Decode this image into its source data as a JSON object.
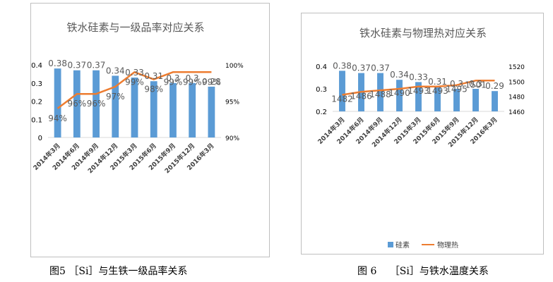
{
  "colors": {
    "bar": "#5b9bd5",
    "line": "#ed7d31",
    "axis": "#d9d9d9",
    "grid": "#d9d9d9",
    "text": "#595959"
  },
  "captions": {
    "fig5": "图5 ［Si］与生铁一级品率关系",
    "fig6": "图 6　 ［Si］与铁水温度关系"
  },
  "chart_data": [
    {
      "type": "bar",
      "title": "铁水硅素与一级品率对应关系",
      "categories": [
        "2014年3月",
        "2014年6月",
        "2014年9月",
        "2014年12月",
        "2015年3月",
        "2015年6月",
        "2015年9月",
        "2015年12月",
        "2016年3月"
      ],
      "series": [
        {
          "name": "硅素",
          "type": "bar",
          "axis": "left",
          "values": [
            0.38,
            0.37,
            0.37,
            0.34,
            0.33,
            0.31,
            0.3,
            0.3,
            0.28
          ],
          "labels": [
            "0.38",
            "0.37",
            "0.37",
            "0.34",
            "0.33",
            "0.31",
            "0.3",
            "0.3",
            "0.28"
          ]
        },
        {
          "name": "一级品率",
          "type": "line",
          "axis": "right",
          "values": [
            94,
            96,
            96,
            97,
            99,
            98,
            99,
            99,
            99
          ],
          "labels": [
            "94%",
            "96%",
            "96%",
            "97%",
            "99%",
            "98%",
            "99%",
            "99%",
            "99%"
          ]
        }
      ],
      "left_axis": {
        "ylim": [
          0,
          0.4
        ],
        "ticks": [
          "0",
          "0.1",
          "0.2",
          "0.3",
          "0.4"
        ]
      },
      "right_axis": {
        "ylim": [
          90,
          100
        ],
        "ticks": [
          "90%",
          "95%",
          "100%"
        ]
      }
    },
    {
      "type": "bar",
      "title": "铁水硅素与物理热对应关系",
      "categories": [
        "2014年3月",
        "2014年6月",
        "2014年9月",
        "2014年12月",
        "2015年3月",
        "2015年6月",
        "2015年9月",
        "2015年12月",
        "2016年3月"
      ],
      "series": [
        {
          "name": "硅素",
          "type": "bar",
          "axis": "left",
          "values": [
            0.38,
            0.37,
            0.37,
            0.34,
            0.33,
            0.31,
            0.3,
            0.3,
            0.29
          ],
          "labels": [
            "0.38",
            "0.37",
            "0.37",
            "0.34",
            "0.33",
            "0.31",
            "0.3",
            "0.3",
            "0.29"
          ]
        },
        {
          "name": "物理热",
          "type": "line",
          "axis": "right",
          "values": [
            1482,
            1486,
            1488,
            1490,
            1493,
            1493,
            1495,
            1501,
            1501
          ],
          "labels": [
            "1482",
            "1486",
            "1488",
            "1490",
            "1493",
            "1493",
            "1495",
            "1501",
            ""
          ]
        }
      ],
      "left_axis": {
        "ylim": [
          0.2,
          0.4
        ],
        "ticks": [
          "0.2",
          "0.3",
          "0.4"
        ]
      },
      "right_axis": {
        "ylim": [
          1460,
          1520
        ],
        "ticks": [
          "1460",
          "1480",
          "1500",
          "1520"
        ]
      },
      "legend": [
        "硅素",
        "物理热"
      ],
      "legend_position": "bottom"
    }
  ]
}
